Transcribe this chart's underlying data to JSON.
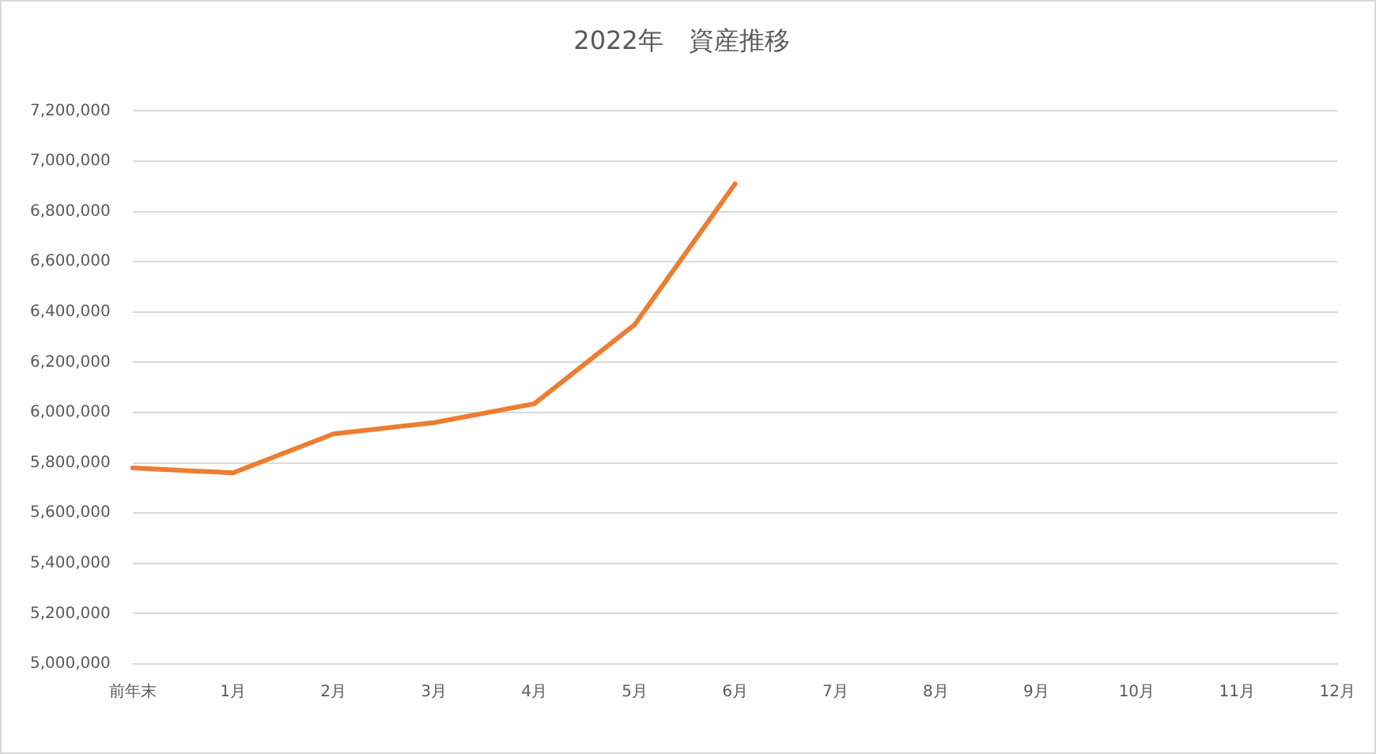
{
  "chart_data": {
    "type": "line",
    "title": "2022年　資産推移",
    "categories": [
      "前年末",
      "1月",
      "2月",
      "3月",
      "4月",
      "5月",
      "6月",
      "7月",
      "8月",
      "9月",
      "10月",
      "11月",
      "12月"
    ],
    "series": [
      {
        "color": "#ed7d31",
        "values": [
          5780000,
          5760000,
          5915000,
          5960000,
          6035000,
          6350000,
          6910000,
          null,
          null,
          null,
          null,
          null,
          null
        ]
      }
    ],
    "ylim": [
      5000000,
      7200000
    ],
    "yticks": [
      {
        "value": 5000000,
        "label": "5,000,000"
      },
      {
        "value": 5200000,
        "label": "5,200,000"
      },
      {
        "value": 5400000,
        "label": "5,400,000"
      },
      {
        "value": 5600000,
        "label": "5,600,000"
      },
      {
        "value": 5800000,
        "label": "5,800,000"
      },
      {
        "value": 6000000,
        "label": "6,000,000"
      },
      {
        "value": 6200000,
        "label": "6,200,000"
      },
      {
        "value": 6400000,
        "label": "6,400,000"
      },
      {
        "value": 6600000,
        "label": "6,600,000"
      },
      {
        "value": 6800000,
        "label": "6,800,000"
      },
      {
        "value": 7000000,
        "label": "7,000,000"
      },
      {
        "value": 7200000,
        "label": "7,200,000"
      }
    ],
    "grid": "y",
    "legend": false,
    "marker": "none",
    "line_style": "solid"
  }
}
